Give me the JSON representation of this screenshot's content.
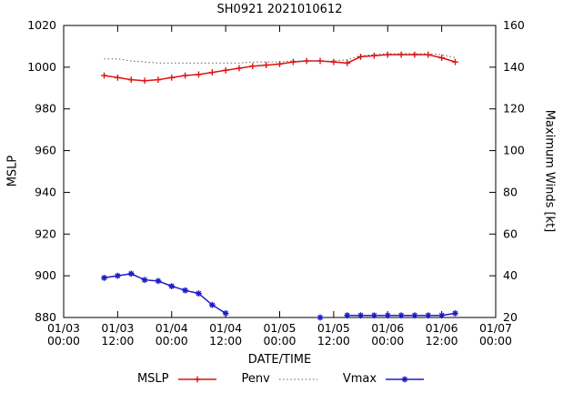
{
  "chart_data": {
    "type": "line",
    "title": "SH0921 2021010612",
    "xlabel": "DATE/TIME",
    "ylabel_left": "MSLP",
    "ylabel_right": "Maximum Winds [kt]",
    "xlim_hours": [
      0,
      96
    ],
    "x_ticks": [
      {
        "hour": 0,
        "date": "01/03",
        "time": "00:00"
      },
      {
        "hour": 12,
        "date": "01/03",
        "time": "12:00"
      },
      {
        "hour": 24,
        "date": "01/04",
        "time": "00:00"
      },
      {
        "hour": 36,
        "date": "01/04",
        "time": "12:00"
      },
      {
        "hour": 48,
        "date": "01/05",
        "time": "00:00"
      },
      {
        "hour": 60,
        "date": "01/05",
        "time": "12:00"
      },
      {
        "hour": 72,
        "date": "01/06",
        "time": "00:00"
      },
      {
        "hour": 84,
        "date": "01/06",
        "time": "12:00"
      },
      {
        "hour": 96,
        "date": "01/07",
        "time": "00:00"
      }
    ],
    "ylim_left": [
      880,
      1020
    ],
    "y_ticks_left": [
      880,
      900,
      920,
      940,
      960,
      980,
      1000,
      1020
    ],
    "ylim_right": [
      20,
      160
    ],
    "y_ticks_right": [
      20,
      40,
      60,
      80,
      100,
      120,
      140,
      160
    ],
    "grid": false,
    "legend_position": "bottom-center",
    "series": [
      {
        "name": "MSLP",
        "axis": "left",
        "color": "#e01212",
        "line": "solid",
        "marker": "plus",
        "segments": [
          {
            "x": [
              9,
              12,
              15,
              18,
              21,
              24,
              27,
              30,
              33,
              36,
              39,
              42,
              45,
              48,
              51,
              54,
              57,
              60,
              63,
              66,
              69,
              72,
              75,
              78,
              81,
              84,
              87
            ],
            "y": [
              996,
              995,
              994,
              993.5,
              994,
              995,
              996,
              996.5,
              997.5,
              998.5,
              999.5,
              1000.5,
              1001,
              1001.5,
              1002.5,
              1003,
              1003,
              1002.5,
              1002,
              1005,
              1005.5,
              1006,
              1006,
              1006,
              1006,
              1004.5,
              1002.5
            ]
          }
        ]
      },
      {
        "name": "Penv",
        "axis": "left",
        "color": "#606060",
        "line": "dotted",
        "marker": "none",
        "segments": [
          {
            "x": [
              9,
              12,
              15,
              18,
              21,
              24,
              27,
              30,
              33,
              36,
              39,
              42,
              45,
              48,
              51,
              54,
              57,
              60,
              63,
              66,
              69,
              72,
              75,
              78,
              81,
              84,
              87
            ],
            "y": [
              1004,
              1004,
              1003,
              1002.5,
              1002,
              1002,
              1002,
              1002,
              1002,
              1002,
              1002,
              1002.5,
              1002.5,
              1002.5,
              1003,
              1003,
              1003,
              1003,
              1003.5,
              1005.5,
              1006,
              1006.5,
              1006.5,
              1006.5,
              1006.5,
              1006,
              1004.5
            ]
          }
        ]
      },
      {
        "name": "Vmax",
        "axis": "right",
        "color": "#1c1cc8",
        "line": "solid",
        "marker": "asterisk",
        "segments": [
          {
            "x": [
              9,
              12,
              15,
              18,
              21,
              24,
              27,
              30,
              33,
              36
            ],
            "y": [
              39,
              40,
              41,
              38,
              37.5,
              35,
              33,
              31.5,
              26,
              22
            ]
          },
          {
            "x": [
              57
            ],
            "y": [
              20
            ]
          },
          {
            "x": [
              63,
              66,
              69,
              72,
              75,
              78,
              81,
              84,
              87
            ],
            "y": [
              21,
              21,
              21,
              21,
              21,
              21,
              21,
              21,
              22
            ]
          }
        ]
      }
    ]
  }
}
